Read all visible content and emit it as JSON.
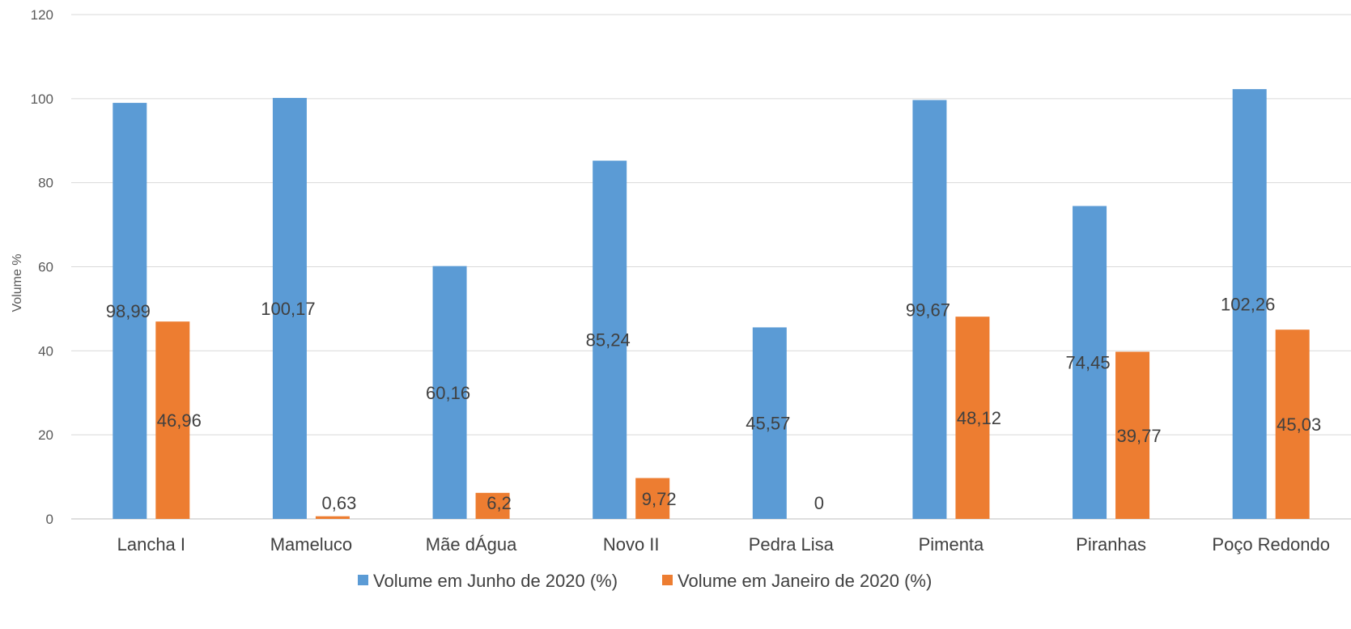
{
  "chart_data": {
    "type": "bar",
    "categories": [
      "Lancha I",
      "Mameluco",
      "Mãe dÁgua",
      "Novo II",
      "Pedra Lisa",
      "Pimenta",
      "Piranhas",
      "Poço Redondo"
    ],
    "series": [
      {
        "name": "Volume em Junho de 2020 (%)",
        "color": "#5B9BD5",
        "values": [
          98.99,
          100.17,
          60.16,
          85.24,
          45.57,
          99.67,
          74.45,
          102.26
        ],
        "labels": [
          "98,99",
          "100,17",
          "60,16",
          "85,24",
          "45,57",
          "99,67",
          "74,45",
          "102,26"
        ]
      },
      {
        "name": "Volume em Janeiro de 2020 (%)",
        "color": "#ED7D31",
        "values": [
          46.96,
          0.63,
          6.2,
          9.72,
          0,
          48.12,
          39.77,
          45.03
        ],
        "labels": [
          "46,96",
          "0,63",
          "6,2",
          "9,72",
          "0",
          "48,12",
          "39,77",
          "45,03"
        ]
      }
    ],
    "ylabel": "Volume %",
    "xlabel": "",
    "title": "",
    "ylim": [
      0,
      120
    ],
    "yticks": [
      0,
      20,
      40,
      60,
      80,
      100,
      120
    ],
    "grid": true,
    "legend": "bottom-center"
  }
}
